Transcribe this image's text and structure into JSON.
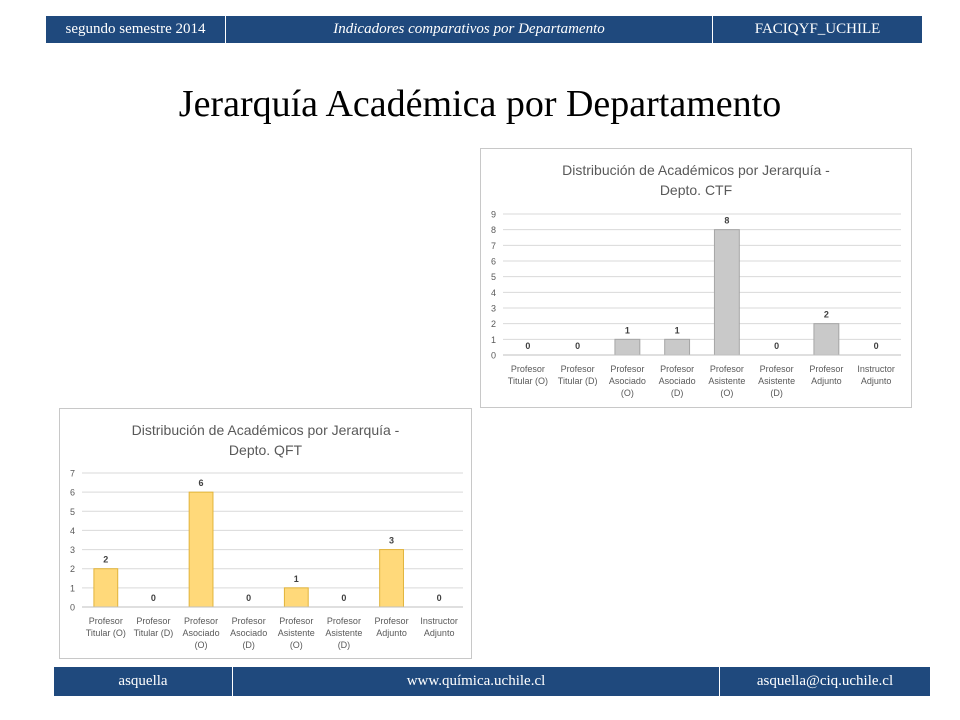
{
  "header": {
    "left": "segundo semestre 2014",
    "center": "Indicadores comparativos por Departamento",
    "right": "FACIQYF_UCHILE"
  },
  "page_title": "Jerarquía Académica por Departamento",
  "footer": {
    "left": "asquella",
    "center": "www.química.uchile.cl",
    "right": "asquella@ciq.uchile.cl"
  },
  "colors": {
    "header_bg": "#1f497d",
    "ctf_bar_fill": "#c9c9c9",
    "ctf_bar_stroke": "#a5a5a5",
    "qft_bar_fill": "#ffd97a",
    "qft_bar_stroke": "#e2b43a"
  },
  "chart_data": [
    {
      "type": "bar",
      "title_line1": "Distribución de Académicos por Jerarquía -",
      "title_line2": "Depto. CTF",
      "categories": [
        [
          "Profesor",
          "Titular (O)"
        ],
        [
          "Profesor",
          "Titular (D)"
        ],
        [
          "Profesor",
          "Asociado",
          "(O)"
        ],
        [
          "Profesor",
          "Asociado",
          "(D)"
        ],
        [
          "Profesor",
          "Asistente",
          "(O)"
        ],
        [
          "Profesor",
          "Asistente",
          "(D)"
        ],
        [
          "Profesor",
          "Adjunto"
        ],
        [
          "Instructor",
          "Adjunto"
        ]
      ],
      "values": [
        0,
        0,
        1,
        1,
        8,
        0,
        2,
        0
      ],
      "ylim": [
        0,
        9
      ],
      "yticks": [
        "0",
        "1",
        "2",
        "3",
        "4",
        "5",
        "6",
        "7",
        "8",
        "9"
      ],
      "grid": true,
      "legend": "none"
    },
    {
      "type": "bar",
      "title_line1": "Distribución de Académicos por Jerarquía -",
      "title_line2": "Depto. QFT",
      "categories": [
        [
          "Profesor",
          "Titular (O)"
        ],
        [
          "Profesor",
          "Titular (D)"
        ],
        [
          "Profesor",
          "Asociado",
          "(O)"
        ],
        [
          "Profesor",
          "Asociado",
          "(D)"
        ],
        [
          "Profesor",
          "Asistente",
          "(O)"
        ],
        [
          "Profesor",
          "Asistente",
          "(D)"
        ],
        [
          "Profesor",
          "Adjunto"
        ],
        [
          "Instructor",
          "Adjunto"
        ]
      ],
      "values": [
        2,
        0,
        6,
        0,
        1,
        0,
        3,
        0
      ],
      "ylim": [
        0,
        7
      ],
      "yticks": [
        "0",
        "1",
        "2",
        "3",
        "4",
        "5",
        "6",
        "7"
      ],
      "grid": true,
      "legend": "none"
    }
  ]
}
